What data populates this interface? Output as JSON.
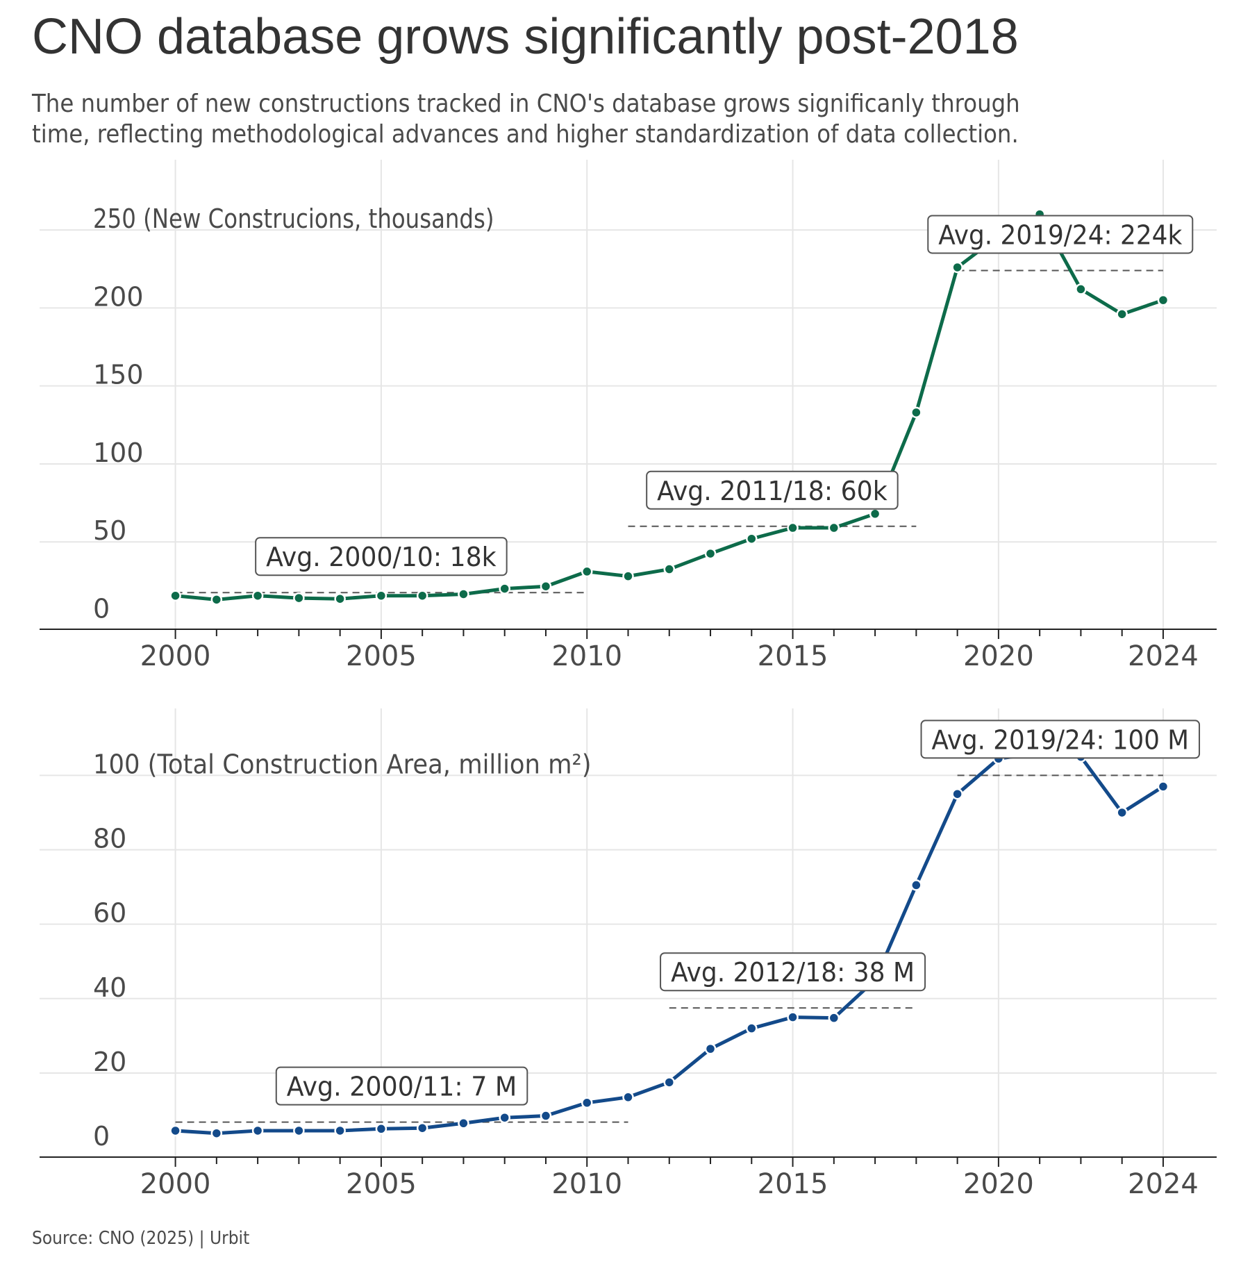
{
  "title": "CNO database grows significantly post-2018",
  "subtitle_lines": [
    "The number of new constructions tracked in CNO's database grows significanly through",
    "time, reflecting methodological advances and higher standardization of data collection."
  ],
  "caption": "Source: CNO (2025) | Urbit",
  "colors": {
    "top_series": "#0d6b4a",
    "bottom_series": "#134a8a",
    "grid": "#e6e6e6",
    "text": "#4a4a4a"
  },
  "chart_data": [
    {
      "type": "line",
      "title": "",
      "xlabel": "",
      "ylabel": "",
      "x": [
        2000,
        2001,
        2002,
        2003,
        2004,
        2005,
        2006,
        2007,
        2008,
        2009,
        2010,
        2011,
        2012,
        2013,
        2014,
        2015,
        2016,
        2017,
        2018,
        2019,
        2020,
        2021,
        2022,
        2023,
        2024
      ],
      "xlim": [
        1996.7,
        2025.3
      ],
      "ylim": [
        -6,
        295
      ],
      "x_ticks": [
        2000,
        2005,
        2010,
        2015,
        2020,
        2024
      ],
      "y_ticks": [
        0,
        50,
        100,
        150,
        200,
        250
      ],
      "y_tick_labels": [
        "0",
        "50",
        "100",
        "150",
        "200",
        "250 (New Construcions, thousands)"
      ],
      "grid": true,
      "series": [
        {
          "values": [
            15.5,
            13,
            15.5,
            14,
            13.5,
            15.5,
            15.5,
            16.5,
            20,
            21.5,
            31,
            28,
            32.5,
            42.5,
            52,
            59,
            59,
            68,
            133,
            226,
            246,
            260,
            212,
            196,
            205
          ]
        }
      ],
      "averages": [
        {
          "label": "Avg. 2000/10: 18k",
          "from": 2000,
          "to": 2010,
          "value": 17.5
        },
        {
          "label": "Avg. 2011/18: 60k",
          "from": 2011,
          "to": 2018,
          "value": 60
        },
        {
          "label": "Avg. 2019/24: 224k",
          "from": 2019,
          "to": 2024,
          "value": 224
        }
      ]
    },
    {
      "type": "line",
      "title": "",
      "xlabel": "",
      "ylabel": "",
      "x": [
        2000,
        2001,
        2002,
        2003,
        2004,
        2005,
        2006,
        2007,
        2008,
        2009,
        2010,
        2011,
        2012,
        2013,
        2014,
        2015,
        2016,
        2017,
        2018,
        2019,
        2020,
        2021,
        2022,
        2023,
        2024
      ],
      "xlim": [
        1996.7,
        2025.3
      ],
      "ylim": [
        -2.6,
        118
      ],
      "x_ticks": [
        2000,
        2005,
        2010,
        2015,
        2020,
        2024
      ],
      "y_ticks": [
        0,
        20,
        40,
        60,
        80,
        100
      ],
      "y_tick_labels": [
        "0",
        "20",
        "40",
        "60",
        "80",
        "100 (Total Construction Area, million m²)"
      ],
      "grid": true,
      "series": [
        {
          "values": [
            4.5,
            3.8,
            4.5,
            4.5,
            4.5,
            5,
            5.2,
            6.5,
            8,
            8.5,
            12,
            13.5,
            17.5,
            26.5,
            32,
            35,
            34.8,
            45,
            70.5,
            95,
            104.5,
            106,
            105,
            90,
            97
          ]
        }
      ],
      "averages": [
        {
          "label": "Avg. 2000/11: 7 M",
          "from": 2000,
          "to": 2011,
          "value": 6.8
        },
        {
          "label": "Avg. 2012/18: 38 M",
          "from": 2012,
          "to": 2018,
          "value": 37.5
        },
        {
          "label": "Avg. 2019/24: 100 M",
          "from": 2019,
          "to": 2024,
          "value": 100
        }
      ]
    }
  ]
}
